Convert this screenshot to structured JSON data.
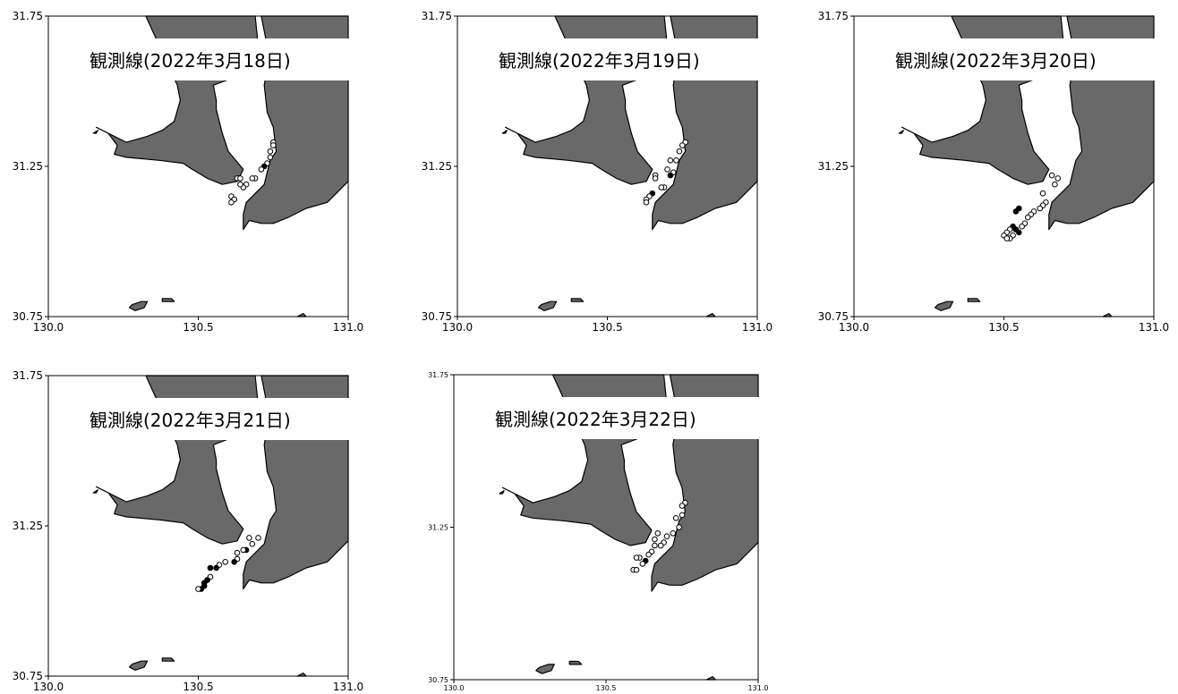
{
  "colors": {
    "land": "#696969",
    "coast": "#000000",
    "sea": "#ffffff",
    "marker_filled": "#000000",
    "marker_open": "#ffffff"
  },
  "axes": {
    "x_ticks": [
      "130.0",
      "130.5",
      "131.0"
    ],
    "y_ticks": [
      "31.75",
      "31.25",
      "30.75"
    ],
    "xlim": [
      130.0,
      131.0
    ],
    "ylim": [
      30.75,
      31.75
    ]
  },
  "panels": [
    {
      "title": "観測線(2022年3月18日)",
      "stations": [
        {
          "lon": 130.75,
          "lat": 31.33,
          "filled": false
        },
        {
          "lon": 130.75,
          "lat": 31.32,
          "filled": false
        },
        {
          "lon": 130.74,
          "lat": 31.3,
          "filled": false
        },
        {
          "lon": 130.74,
          "lat": 31.28,
          "filled": false
        },
        {
          "lon": 130.73,
          "lat": 31.26,
          "filled": false
        },
        {
          "lon": 130.72,
          "lat": 31.25,
          "filled": true
        },
        {
          "lon": 130.71,
          "lat": 31.24,
          "filled": false
        },
        {
          "lon": 130.69,
          "lat": 31.21,
          "filled": false
        },
        {
          "lon": 130.68,
          "lat": 31.21,
          "filled": false
        },
        {
          "lon": 130.66,
          "lat": 31.19,
          "filled": false
        },
        {
          "lon": 130.65,
          "lat": 31.18,
          "filled": false
        },
        {
          "lon": 130.64,
          "lat": 31.19,
          "filled": false
        },
        {
          "lon": 130.63,
          "lat": 31.21,
          "filled": false
        },
        {
          "lon": 130.64,
          "lat": 31.21,
          "filled": false
        },
        {
          "lon": 130.61,
          "lat": 31.15,
          "filled": false
        },
        {
          "lon": 130.62,
          "lat": 31.14,
          "filled": false
        },
        {
          "lon": 130.61,
          "lat": 31.13,
          "filled": false
        }
      ]
    },
    {
      "title": "観測線(2022年3月19日)",
      "stations": [
        {
          "lon": 130.76,
          "lat": 31.33,
          "filled": false
        },
        {
          "lon": 130.75,
          "lat": 31.32,
          "filled": false
        },
        {
          "lon": 130.74,
          "lat": 31.3,
          "filled": false
        },
        {
          "lon": 130.73,
          "lat": 31.27,
          "filled": false
        },
        {
          "lon": 130.71,
          "lat": 31.27,
          "filled": false
        },
        {
          "lon": 130.72,
          "lat": 31.23,
          "filled": false
        },
        {
          "lon": 130.71,
          "lat": 31.22,
          "filled": true
        },
        {
          "lon": 130.7,
          "lat": 31.24,
          "filled": false
        },
        {
          "lon": 130.69,
          "lat": 31.18,
          "filled": false
        },
        {
          "lon": 130.68,
          "lat": 31.18,
          "filled": false
        },
        {
          "lon": 130.66,
          "lat": 31.22,
          "filled": false
        },
        {
          "lon": 130.66,
          "lat": 31.21,
          "filled": false
        },
        {
          "lon": 130.65,
          "lat": 31.16,
          "filled": true
        },
        {
          "lon": 130.64,
          "lat": 31.15,
          "filled": false
        },
        {
          "lon": 130.63,
          "lat": 31.14,
          "filled": false
        },
        {
          "lon": 130.63,
          "lat": 31.13,
          "filled": false
        }
      ]
    },
    {
      "title": "観測線(2022年3月20日)",
      "stations": [
        {
          "lon": 130.68,
          "lat": 31.21,
          "filled": false
        },
        {
          "lon": 130.66,
          "lat": 31.22,
          "filled": false
        },
        {
          "lon": 130.67,
          "lat": 31.19,
          "filled": false
        },
        {
          "lon": 130.63,
          "lat": 31.16,
          "filled": false
        },
        {
          "lon": 130.64,
          "lat": 31.13,
          "filled": false
        },
        {
          "lon": 130.63,
          "lat": 31.12,
          "filled": false
        },
        {
          "lon": 130.62,
          "lat": 31.11,
          "filled": false
        },
        {
          "lon": 130.6,
          "lat": 31.1,
          "filled": false
        },
        {
          "lon": 130.59,
          "lat": 31.09,
          "filled": false
        },
        {
          "lon": 130.58,
          "lat": 31.08,
          "filled": false
        },
        {
          "lon": 130.57,
          "lat": 31.06,
          "filled": false
        },
        {
          "lon": 130.56,
          "lat": 31.05,
          "filled": false
        },
        {
          "lon": 130.55,
          "lat": 31.11,
          "filled": true
        },
        {
          "lon": 130.54,
          "lat": 31.1,
          "filled": true
        },
        {
          "lon": 130.53,
          "lat": 31.05,
          "filled": true
        },
        {
          "lon": 130.54,
          "lat": 31.04,
          "filled": true
        },
        {
          "lon": 130.55,
          "lat": 31.03,
          "filled": true
        },
        {
          "lon": 130.52,
          "lat": 31.04,
          "filled": false
        },
        {
          "lon": 130.51,
          "lat": 31.03,
          "filled": false
        },
        {
          "lon": 130.53,
          "lat": 31.02,
          "filled": false
        },
        {
          "lon": 130.5,
          "lat": 31.02,
          "filled": false
        },
        {
          "lon": 130.52,
          "lat": 31.01,
          "filled": false
        },
        {
          "lon": 130.51,
          "lat": 31.01,
          "filled": false
        }
      ]
    },
    {
      "title": "観測線(2022年3月21日)",
      "stations": [
        {
          "lon": 130.7,
          "lat": 31.21,
          "filled": false
        },
        {
          "lon": 130.67,
          "lat": 31.21,
          "filled": false
        },
        {
          "lon": 130.68,
          "lat": 31.19,
          "filled": false
        },
        {
          "lon": 130.66,
          "lat": 31.17,
          "filled": true
        },
        {
          "lon": 130.65,
          "lat": 31.17,
          "filled": false
        },
        {
          "lon": 130.63,
          "lat": 31.16,
          "filled": false
        },
        {
          "lon": 130.63,
          "lat": 31.14,
          "filled": false
        },
        {
          "lon": 130.62,
          "lat": 31.13,
          "filled": true
        },
        {
          "lon": 130.59,
          "lat": 31.13,
          "filled": false
        },
        {
          "lon": 130.57,
          "lat": 31.12,
          "filled": false
        },
        {
          "lon": 130.56,
          "lat": 31.11,
          "filled": true
        },
        {
          "lon": 130.54,
          "lat": 31.11,
          "filled": true
        },
        {
          "lon": 130.54,
          "lat": 31.08,
          "filled": false
        },
        {
          "lon": 130.53,
          "lat": 31.07,
          "filled": true
        },
        {
          "lon": 130.52,
          "lat": 31.06,
          "filled": true
        },
        {
          "lon": 130.52,
          "lat": 31.05,
          "filled": true
        },
        {
          "lon": 130.51,
          "lat": 31.04,
          "filled": true
        },
        {
          "lon": 130.5,
          "lat": 31.04,
          "filled": false
        }
      ]
    },
    {
      "title": "観測線(2022年3月22日)",
      "stations": [
        {
          "lon": 130.76,
          "lat": 31.33,
          "filled": false
        },
        {
          "lon": 130.75,
          "lat": 31.32,
          "filled": false
        },
        {
          "lon": 130.75,
          "lat": 31.29,
          "filled": false
        },
        {
          "lon": 130.73,
          "lat": 31.28,
          "filled": false
        },
        {
          "lon": 130.74,
          "lat": 31.25,
          "filled": false
        },
        {
          "lon": 130.72,
          "lat": 31.23,
          "filled": false
        },
        {
          "lon": 130.7,
          "lat": 31.22,
          "filled": false
        },
        {
          "lon": 130.69,
          "lat": 31.2,
          "filled": false
        },
        {
          "lon": 130.68,
          "lat": 31.19,
          "filled": false
        },
        {
          "lon": 130.67,
          "lat": 31.23,
          "filled": false
        },
        {
          "lon": 130.66,
          "lat": 31.21,
          "filled": false
        },
        {
          "lon": 130.66,
          "lat": 31.19,
          "filled": false
        },
        {
          "lon": 130.65,
          "lat": 31.17,
          "filled": false
        },
        {
          "lon": 130.64,
          "lat": 31.16,
          "filled": false
        },
        {
          "lon": 130.63,
          "lat": 31.14,
          "filled": true
        },
        {
          "lon": 130.62,
          "lat": 31.13,
          "filled": false
        },
        {
          "lon": 130.61,
          "lat": 31.15,
          "filled": false
        },
        {
          "lon": 130.6,
          "lat": 31.15,
          "filled": false
        },
        {
          "lon": 130.59,
          "lat": 31.11,
          "filled": false
        },
        {
          "lon": 130.6,
          "lat": 31.11,
          "filled": false
        }
      ]
    }
  ]
}
